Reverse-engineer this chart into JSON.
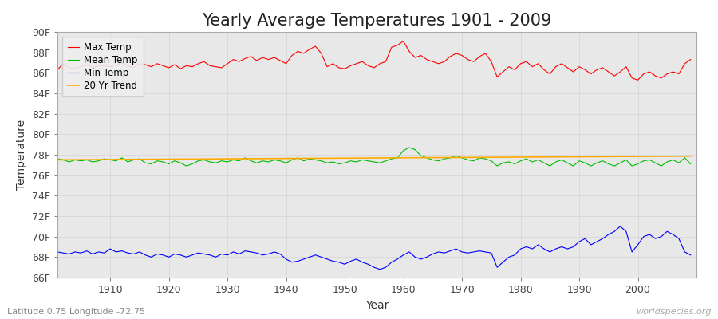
{
  "title": "Yearly Average Temperatures 1901 - 2009",
  "xlabel": "Year",
  "ylabel": "Temperature",
  "years": [
    1901,
    1902,
    1903,
    1904,
    1905,
    1906,
    1907,
    1908,
    1909,
    1910,
    1911,
    1912,
    1913,
    1914,
    1915,
    1916,
    1917,
    1918,
    1919,
    1920,
    1921,
    1922,
    1923,
    1924,
    1925,
    1926,
    1927,
    1928,
    1929,
    1930,
    1931,
    1932,
    1933,
    1934,
    1935,
    1936,
    1937,
    1938,
    1939,
    1940,
    1941,
    1942,
    1943,
    1944,
    1945,
    1946,
    1947,
    1948,
    1949,
    1950,
    1951,
    1952,
    1953,
    1954,
    1955,
    1956,
    1957,
    1958,
    1959,
    1960,
    1961,
    1962,
    1963,
    1964,
    1965,
    1966,
    1967,
    1968,
    1969,
    1970,
    1971,
    1972,
    1973,
    1974,
    1975,
    1976,
    1977,
    1978,
    1979,
    1980,
    1981,
    1982,
    1983,
    1984,
    1985,
    1986,
    1987,
    1988,
    1989,
    1990,
    1991,
    1992,
    1993,
    1994,
    1995,
    1996,
    1997,
    1998,
    1999,
    2000,
    2001,
    2002,
    2003,
    2004,
    2005,
    2006,
    2007,
    2008,
    2009
  ],
  "max_temp": [
    86.3,
    86.9,
    86.5,
    86.4,
    86.6,
    86.8,
    86.5,
    86.7,
    86.7,
    86.6,
    86.8,
    87.0,
    86.7,
    86.5,
    86.9,
    86.8,
    86.6,
    86.9,
    86.7,
    86.5,
    86.8,
    86.4,
    86.7,
    86.6,
    86.9,
    87.1,
    86.7,
    86.6,
    86.5,
    86.9,
    87.3,
    87.1,
    87.4,
    87.6,
    87.2,
    87.5,
    87.3,
    87.5,
    87.2,
    86.9,
    87.7,
    88.1,
    87.9,
    88.3,
    88.6,
    87.9,
    86.6,
    86.9,
    86.5,
    86.4,
    86.7,
    86.9,
    87.1,
    86.7,
    86.5,
    86.9,
    87.1,
    88.5,
    88.7,
    89.1,
    88.1,
    87.5,
    87.7,
    87.3,
    87.1,
    86.9,
    87.1,
    87.6,
    87.9,
    87.7,
    87.3,
    87.1,
    87.6,
    87.9,
    87.1,
    85.6,
    86.1,
    86.6,
    86.3,
    86.9,
    87.1,
    86.6,
    86.9,
    86.3,
    85.9,
    86.6,
    86.9,
    86.5,
    86.1,
    86.6,
    86.3,
    85.9,
    86.3,
    86.5,
    86.1,
    85.7,
    86.1,
    86.6,
    85.5,
    85.3,
    85.9,
    86.1,
    85.7,
    85.5,
    85.9,
    86.1,
    85.9,
    86.9,
    87.3
  ],
  "mean_temp": [
    77.6,
    77.5,
    77.3,
    77.5,
    77.4,
    77.5,
    77.3,
    77.4,
    77.6,
    77.5,
    77.4,
    77.7,
    77.3,
    77.5,
    77.6,
    77.2,
    77.1,
    77.4,
    77.3,
    77.1,
    77.4,
    77.2,
    76.9,
    77.1,
    77.4,
    77.5,
    77.3,
    77.2,
    77.4,
    77.3,
    77.5,
    77.4,
    77.7,
    77.4,
    77.2,
    77.4,
    77.3,
    77.5,
    77.4,
    77.2,
    77.5,
    77.7,
    77.4,
    77.6,
    77.5,
    77.4,
    77.2,
    77.3,
    77.1,
    77.2,
    77.4,
    77.3,
    77.5,
    77.4,
    77.3,
    77.2,
    77.4,
    77.6,
    77.7,
    78.4,
    78.7,
    78.5,
    77.9,
    77.7,
    77.5,
    77.4,
    77.6,
    77.7,
    77.9,
    77.7,
    77.5,
    77.4,
    77.7,
    77.6,
    77.4,
    76.9,
    77.2,
    77.3,
    77.1,
    77.4,
    77.6,
    77.3,
    77.5,
    77.2,
    76.9,
    77.3,
    77.5,
    77.2,
    76.9,
    77.4,
    77.2,
    76.9,
    77.2,
    77.4,
    77.1,
    76.9,
    77.2,
    77.5,
    76.9,
    77.1,
    77.4,
    77.5,
    77.2,
    76.9,
    77.3,
    77.5,
    77.2,
    77.7,
    77.1
  ],
  "min_temp": [
    68.5,
    68.4,
    68.3,
    68.5,
    68.4,
    68.6,
    68.3,
    68.5,
    68.4,
    68.8,
    68.5,
    68.6,
    68.4,
    68.3,
    68.5,
    68.2,
    68.0,
    68.3,
    68.2,
    68.0,
    68.3,
    68.2,
    68.0,
    68.2,
    68.4,
    68.3,
    68.2,
    68.0,
    68.3,
    68.2,
    68.5,
    68.3,
    68.6,
    68.5,
    68.4,
    68.2,
    68.3,
    68.5,
    68.3,
    67.8,
    67.5,
    67.6,
    67.8,
    68.0,
    68.2,
    68.0,
    67.8,
    67.6,
    67.5,
    67.3,
    67.6,
    67.8,
    67.5,
    67.3,
    67.0,
    66.8,
    67.0,
    67.5,
    67.8,
    68.2,
    68.5,
    68.0,
    67.8,
    68.0,
    68.3,
    68.5,
    68.4,
    68.6,
    68.8,
    68.5,
    68.4,
    68.5,
    68.6,
    68.5,
    68.4,
    67.0,
    67.5,
    68.0,
    68.2,
    68.8,
    69.0,
    68.8,
    69.2,
    68.8,
    68.5,
    68.8,
    69.0,
    68.8,
    69.0,
    69.5,
    69.8,
    69.2,
    69.5,
    69.8,
    70.2,
    70.5,
    71.0,
    70.5,
    68.5,
    69.2,
    70.0,
    70.2,
    69.8,
    70.0,
    70.5,
    70.2,
    69.8,
    68.5,
    68.2
  ],
  "trend": [
    77.5,
    77.5,
    77.51,
    77.51,
    77.52,
    77.52,
    77.52,
    77.53,
    77.53,
    77.53,
    77.54,
    77.54,
    77.54,
    77.55,
    77.55,
    77.55,
    77.56,
    77.56,
    77.56,
    77.57,
    77.57,
    77.57,
    77.58,
    77.58,
    77.58,
    77.59,
    77.59,
    77.59,
    77.6,
    77.6,
    77.61,
    77.61,
    77.61,
    77.62,
    77.62,
    77.62,
    77.63,
    77.63,
    77.63,
    77.64,
    77.64,
    77.64,
    77.65,
    77.65,
    77.65,
    77.66,
    77.66,
    77.66,
    77.67,
    77.67,
    77.67,
    77.68,
    77.68,
    77.68,
    77.69,
    77.69,
    77.69,
    77.7,
    77.7,
    77.7,
    77.71,
    77.71,
    77.71,
    77.72,
    77.72,
    77.72,
    77.73,
    77.73,
    77.73,
    77.74,
    77.74,
    77.74,
    77.75,
    77.75,
    77.75,
    77.76,
    77.76,
    77.76,
    77.77,
    77.77,
    77.77,
    77.78,
    77.78,
    77.78,
    77.79,
    77.79,
    77.79,
    77.8,
    77.8,
    77.8,
    77.81,
    77.81,
    77.81,
    77.82,
    77.82,
    77.82,
    77.83,
    77.83,
    77.83,
    77.84,
    77.84,
    77.84,
    77.85,
    77.85,
    77.85,
    77.86,
    77.86,
    77.86,
    77.87
  ],
  "max_color": "#ff0000",
  "mean_color": "#00bb00",
  "min_color": "#0000ff",
  "trend_color": "#ffaa00",
  "fig_bg_color": "#ffffff",
  "plot_bg_color": "#e8e8e8",
  "grid_color": "#d0d0d0",
  "ylim": [
    66,
    90
  ],
  "yticks": [
    66,
    68,
    70,
    72,
    74,
    76,
    78,
    80,
    82,
    84,
    86,
    88,
    90
  ],
  "ytick_labels": [
    "66F",
    "68F",
    "70F",
    "72F",
    "74F",
    "76F",
    "78F",
    "80F",
    "82F",
    "84F",
    "86F",
    "88F",
    "90F"
  ],
  "xticks": [
    1910,
    1920,
    1930,
    1940,
    1950,
    1960,
    1970,
    1980,
    1990,
    2000
  ],
  "title_fontsize": 15,
  "axis_label_fontsize": 10,
  "tick_fontsize": 9,
  "legend_labels": [
    "Max Temp",
    "Mean Temp",
    "Min Temp",
    "20 Yr Trend"
  ],
  "watermark": "worldspecies.org",
  "subtitle": "Latitude 0.75 Longitude -72.75"
}
